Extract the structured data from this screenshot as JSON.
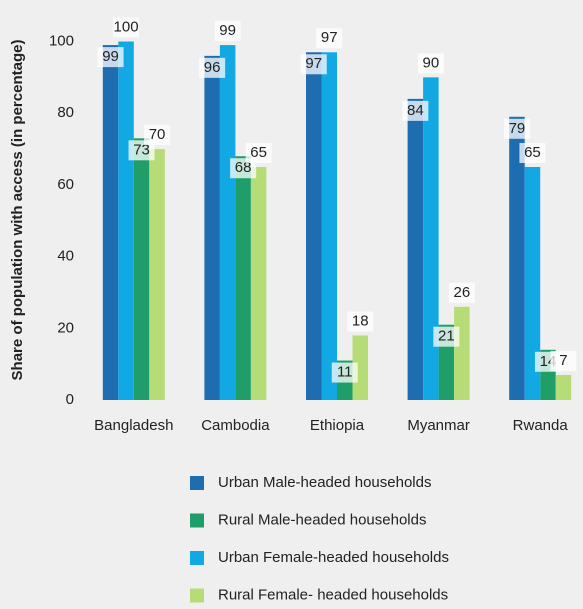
{
  "chart_data": {
    "type": "bar",
    "y_label": "Share of population with access (in percentage)",
    "categories": [
      "Bangladesh",
      "Cambodia",
      "Ethiopia",
      "Myanmar",
      "Rwanda"
    ],
    "series": [
      {
        "name": "Urban Male-headed households",
        "color": "#1f6db1",
        "values": [
          99,
          96,
          97,
          84,
          79
        ]
      },
      {
        "name": "Rural Male-headed households",
        "color": "#1f9e69",
        "values": [
          73,
          68,
          11,
          21,
          14
        ]
      },
      {
        "name": "Urban Female-headed households",
        "color": "#12a8e4",
        "values": [
          100,
          99,
          97,
          90,
          65
        ]
      },
      {
        "name": "Rural Female- headed households",
        "color": "#b6dc78",
        "values": [
          70,
          65,
          18,
          26,
          7
        ]
      }
    ],
    "ylim": [
      0,
      106
    ],
    "yticks": [
      0,
      20,
      40,
      60,
      80,
      100
    ],
    "grid": false
  }
}
